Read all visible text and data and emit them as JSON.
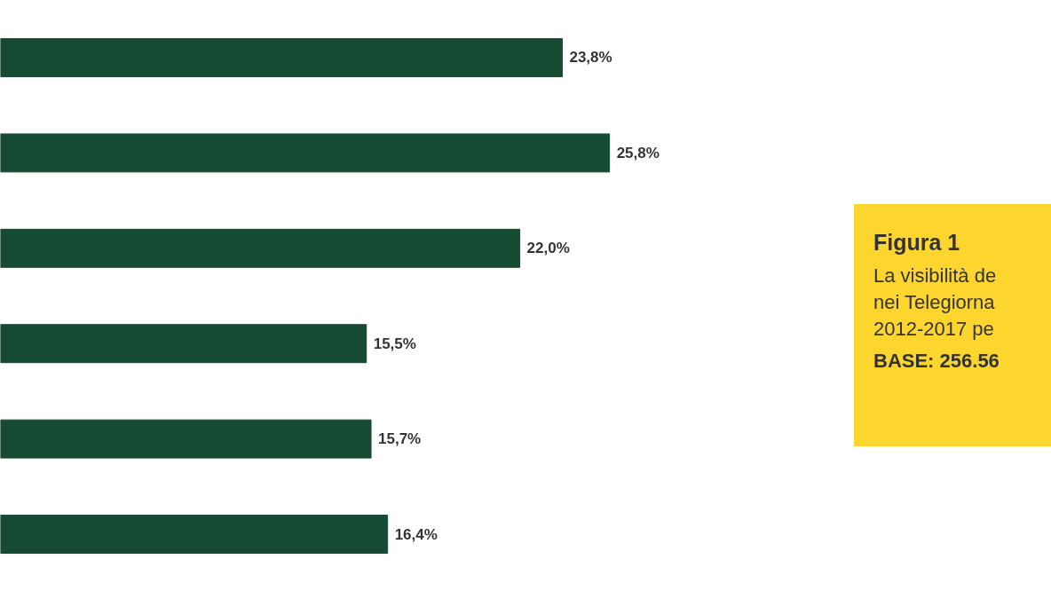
{
  "chart_data": {
    "type": "bar",
    "orientation": "horizontal",
    "title": "Figura 1",
    "annotations": [
      "La visibilità de",
      "nei Telegiorna",
      "2012-2017 pe",
      "BASE: 256.56"
    ],
    "categories": [
      null,
      null,
      null,
      null,
      null,
      null
    ],
    "values": [
      23.8,
      25.8,
      22.0,
      15.5,
      15.7,
      16.4
    ],
    "value_labels": [
      "23,8%",
      "25,8%",
      "22,0%",
      "15,5%",
      "15,7%",
      "16,4%"
    ],
    "color": "#174a33",
    "grid": false
  }
}
